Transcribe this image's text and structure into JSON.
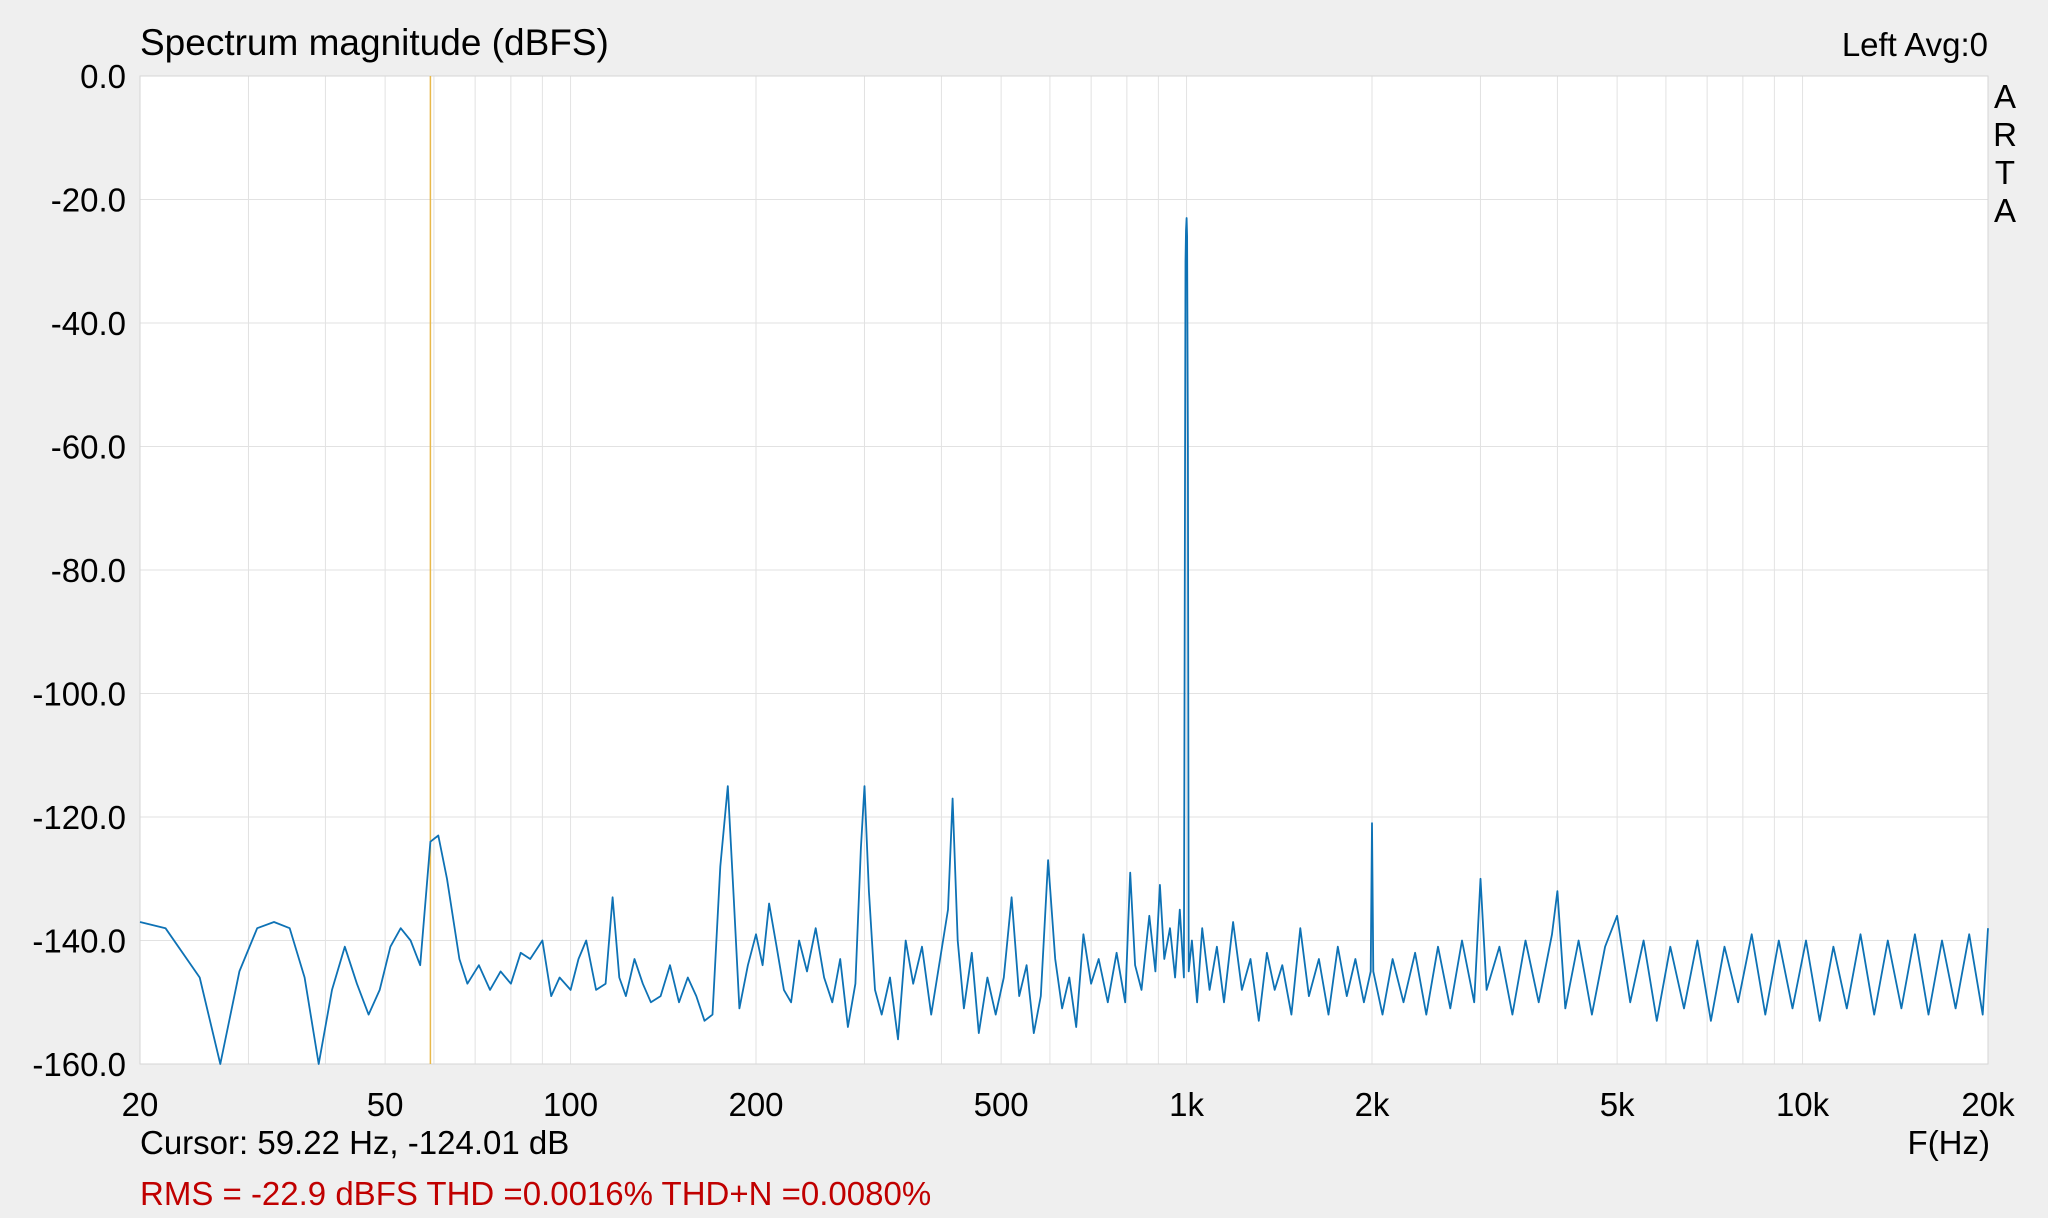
{
  "chart_data": {
    "type": "line",
    "title": "Spectrum magnitude (dBFS)",
    "channel_label": "Left  Avg:0",
    "brand": [
      "A",
      "R",
      "T",
      "A"
    ],
    "xlabel": "F(Hz)",
    "ylabel": "",
    "x_scale": "log",
    "xlim": [
      20,
      20000
    ],
    "ylim": [
      -160,
      0
    ],
    "grid": true,
    "x_ticks": [
      {
        "value": 20,
        "label": "20"
      },
      {
        "value": 50,
        "label": "50"
      },
      {
        "value": 100,
        "label": "100"
      },
      {
        "value": 200,
        "label": "200"
      },
      {
        "value": 500,
        "label": "500"
      },
      {
        "value": 1000,
        "label": "1k"
      },
      {
        "value": 2000,
        "label": "2k"
      },
      {
        "value": 5000,
        "label": "5k"
      },
      {
        "value": 10000,
        "label": "10k"
      },
      {
        "value": 20000,
        "label": "20k"
      }
    ],
    "y_ticks": [
      {
        "value": 0,
        "label": "0.0"
      },
      {
        "value": -20,
        "label": "-20.0"
      },
      {
        "value": -40,
        "label": "-40.0"
      },
      {
        "value": -60,
        "label": "-60.0"
      },
      {
        "value": -80,
        "label": "-80.0"
      },
      {
        "value": -100,
        "label": "-100.0"
      },
      {
        "value": -120,
        "label": "-120.0"
      },
      {
        "value": -140,
        "label": "-140.0"
      },
      {
        "value": -160,
        "label": "-160.0"
      }
    ],
    "cursor": {
      "x": 59.22,
      "y": -124.01,
      "label": "Cursor: 59.22 Hz, -124.01 dB"
    },
    "stats_label": "RMS =  -22.9 dBFS THD =0.0016% THD+N =0.0080%",
    "series": [
      {
        "color": "#0e72b5",
        "points": [
          [
            20,
            -137
          ],
          [
            22,
            -138
          ],
          [
            25,
            -146
          ],
          [
            27,
            -160
          ],
          [
            29,
            -145
          ],
          [
            31,
            -138
          ],
          [
            33,
            -137
          ],
          [
            35,
            -138
          ],
          [
            37,
            -146
          ],
          [
            39,
            -162
          ],
          [
            41,
            -148
          ],
          [
            43,
            -141
          ],
          [
            45,
            -147
          ],
          [
            47,
            -152
          ],
          [
            49,
            -148
          ],
          [
            51,
            -141
          ],
          [
            53,
            -138
          ],
          [
            55,
            -140
          ],
          [
            57,
            -144
          ],
          [
            59.22,
            -124
          ],
          [
            61,
            -123
          ],
          [
            63,
            -130
          ],
          [
            66,
            -143
          ],
          [
            68,
            -147
          ],
          [
            71,
            -144
          ],
          [
            74,
            -148
          ],
          [
            77,
            -145
          ],
          [
            80,
            -147
          ],
          [
            83,
            -142
          ],
          [
            86,
            -143
          ],
          [
            90,
            -140
          ],
          [
            93,
            -149
          ],
          [
            96,
            -146
          ],
          [
            100,
            -148
          ],
          [
            103,
            -143
          ],
          [
            106,
            -140
          ],
          [
            110,
            -148
          ],
          [
            114,
            -147
          ],
          [
            117,
            -133
          ],
          [
            120,
            -146
          ],
          [
            123,
            -149
          ],
          [
            127,
            -143
          ],
          [
            131,
            -147
          ],
          [
            135,
            -150
          ],
          [
            140,
            -149
          ],
          [
            145,
            -144
          ],
          [
            150,
            -150
          ],
          [
            155,
            -146
          ],
          [
            160,
            -149
          ],
          [
            165,
            -153
          ],
          [
            170,
            -152
          ],
          [
            175,
            -128
          ],
          [
            180,
            -115
          ],
          [
            184,
            -133
          ],
          [
            188,
            -151
          ],
          [
            194,
            -144
          ],
          [
            200,
            -139
          ],
          [
            205,
            -144
          ],
          [
            210,
            -134
          ],
          [
            216,
            -141
          ],
          [
            222,
            -148
          ],
          [
            228,
            -150
          ],
          [
            235,
            -140
          ],
          [
            242,
            -145
          ],
          [
            250,
            -138
          ],
          [
            258,
            -146
          ],
          [
            266,
            -150
          ],
          [
            274,
            -143
          ],
          [
            282,
            -154
          ],
          [
            290,
            -147
          ],
          [
            296,
            -125
          ],
          [
            300,
            -115
          ],
          [
            305,
            -132
          ],
          [
            312,
            -148
          ],
          [
            320,
            -152
          ],
          [
            330,
            -146
          ],
          [
            340,
            -156
          ],
          [
            350,
            -140
          ],
          [
            360,
            -147
          ],
          [
            372,
            -141
          ],
          [
            385,
            -152
          ],
          [
            398,
            -143
          ],
          [
            410,
            -135
          ],
          [
            417,
            -117
          ],
          [
            425,
            -140
          ],
          [
            435,
            -151
          ],
          [
            448,
            -142
          ],
          [
            460,
            -155
          ],
          [
            475,
            -146
          ],
          [
            490,
            -152
          ],
          [
            505,
            -146
          ],
          [
            520,
            -133
          ],
          [
            535,
            -149
          ],
          [
            550,
            -144
          ],
          [
            565,
            -155
          ],
          [
            580,
            -149
          ],
          [
            596,
            -127
          ],
          [
            612,
            -143
          ],
          [
            628,
            -151
          ],
          [
            645,
            -146
          ],
          [
            662,
            -154
          ],
          [
            680,
            -139
          ],
          [
            700,
            -147
          ],
          [
            720,
            -143
          ],
          [
            745,
            -150
          ],
          [
            770,
            -142
          ],
          [
            795,
            -150
          ],
          [
            810,
            -129
          ],
          [
            825,
            -144
          ],
          [
            845,
            -148
          ],
          [
            870,
            -136
          ],
          [
            890,
            -145
          ],
          [
            905,
            -131
          ],
          [
            920,
            -143
          ],
          [
            940,
            -138
          ],
          [
            958,
            -146
          ],
          [
            975,
            -135
          ],
          [
            990,
            -146
          ],
          [
            996,
            -30
          ],
          [
            998,
            -25
          ],
          [
            1000,
            -23
          ],
          [
            1002,
            -26
          ],
          [
            1005,
            -60
          ],
          [
            1008,
            -145
          ],
          [
            1020,
            -140
          ],
          [
            1040,
            -150
          ],
          [
            1060,
            -138
          ],
          [
            1090,
            -148
          ],
          [
            1120,
            -141
          ],
          [
            1150,
            -150
          ],
          [
            1190,
            -137
          ],
          [
            1230,
            -148
          ],
          [
            1270,
            -143
          ],
          [
            1310,
            -153
          ],
          [
            1350,
            -142
          ],
          [
            1390,
            -148
          ],
          [
            1430,
            -144
          ],
          [
            1480,
            -152
          ],
          [
            1530,
            -138
          ],
          [
            1580,
            -149
          ],
          [
            1640,
            -143
          ],
          [
            1700,
            -152
          ],
          [
            1760,
            -141
          ],
          [
            1820,
            -149
          ],
          [
            1880,
            -143
          ],
          [
            1940,
            -150
          ],
          [
            1990,
            -145
          ],
          [
            2000,
            -121
          ],
          [
            2010,
            -145
          ],
          [
            2080,
            -152
          ],
          [
            2160,
            -143
          ],
          [
            2250,
            -150
          ],
          [
            2350,
            -142
          ],
          [
            2450,
            -152
          ],
          [
            2560,
            -141
          ],
          [
            2680,
            -151
          ],
          [
            2800,
            -140
          ],
          [
            2930,
            -150
          ],
          [
            3000,
            -130
          ],
          [
            3070,
            -148
          ],
          [
            3220,
            -141
          ],
          [
            3380,
            -152
          ],
          [
            3550,
            -140
          ],
          [
            3730,
            -150
          ],
          [
            3920,
            -139
          ],
          [
            4000,
            -132
          ],
          [
            4120,
            -151
          ],
          [
            4330,
            -140
          ],
          [
            4550,
            -152
          ],
          [
            4780,
            -141
          ],
          [
            5000,
            -136
          ],
          [
            5250,
            -150
          ],
          [
            5520,
            -140
          ],
          [
            5800,
            -153
          ],
          [
            6100,
            -141
          ],
          [
            6420,
            -151
          ],
          [
            6750,
            -140
          ],
          [
            7100,
            -153
          ],
          [
            7470,
            -141
          ],
          [
            7860,
            -150
          ],
          [
            8270,
            -139
          ],
          [
            8700,
            -152
          ],
          [
            9150,
            -140
          ],
          [
            9630,
            -151
          ],
          [
            10130,
            -140
          ],
          [
            10660,
            -153
          ],
          [
            11220,
            -141
          ],
          [
            11800,
            -151
          ],
          [
            12420,
            -139
          ],
          [
            13070,
            -152
          ],
          [
            13750,
            -140
          ],
          [
            14470,
            -151
          ],
          [
            15220,
            -139
          ],
          [
            16010,
            -152
          ],
          [
            16840,
            -140
          ],
          [
            17720,
            -151
          ],
          [
            18640,
            -139
          ],
          [
            19610,
            -152
          ],
          [
            20000,
            -138
          ]
        ]
      }
    ]
  }
}
